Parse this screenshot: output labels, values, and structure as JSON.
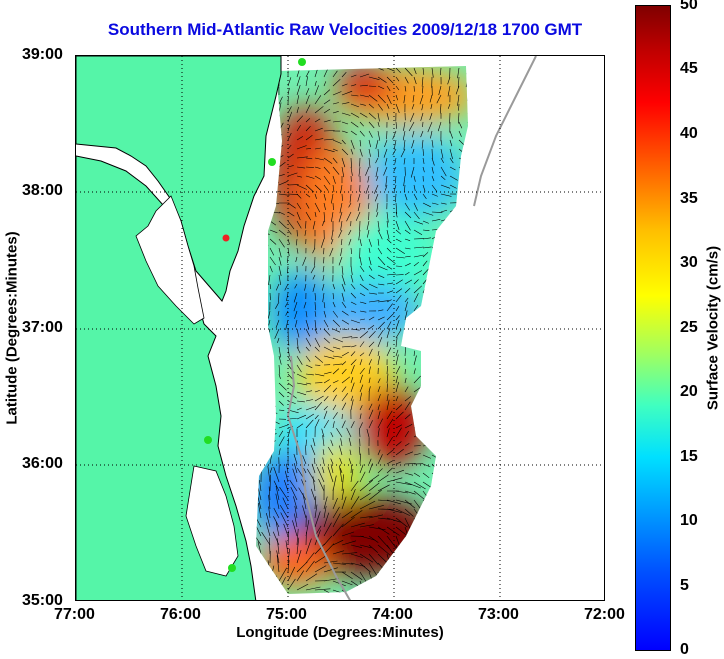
{
  "title": "Southern Mid-Atlantic Raw Velocities 2009/12/18 1700 GMT",
  "map": {
    "xlabel": "Longitude (Degrees:Minutes)",
    "ylabel": "Latitude (Degrees:Minutes)",
    "lon_range": [
      -77.0,
      -72.0
    ],
    "lat_range": [
      35.0,
      39.0
    ],
    "x_ticks": [
      "77:00",
      "76:00",
      "75:00",
      "74:00",
      "73:00",
      "72:00"
    ],
    "y_ticks": [
      "39:00",
      "38:00",
      "37:00",
      "36:00",
      "35:00"
    ],
    "grid": "dotted",
    "colors": {
      "land": "#55f5a8",
      "coastline": "#000000",
      "bathymetry": "#9a9a9a",
      "station": "#22dd22",
      "station_alert": "#ee2222"
    }
  },
  "colorbar": {
    "label": "Surface Velocity (cm/s)",
    "ticks": [
      "50",
      "45",
      "40",
      "35",
      "30",
      "25",
      "20",
      "15",
      "10",
      "5",
      "0"
    ],
    "range": [
      0,
      50
    ]
  }
}
